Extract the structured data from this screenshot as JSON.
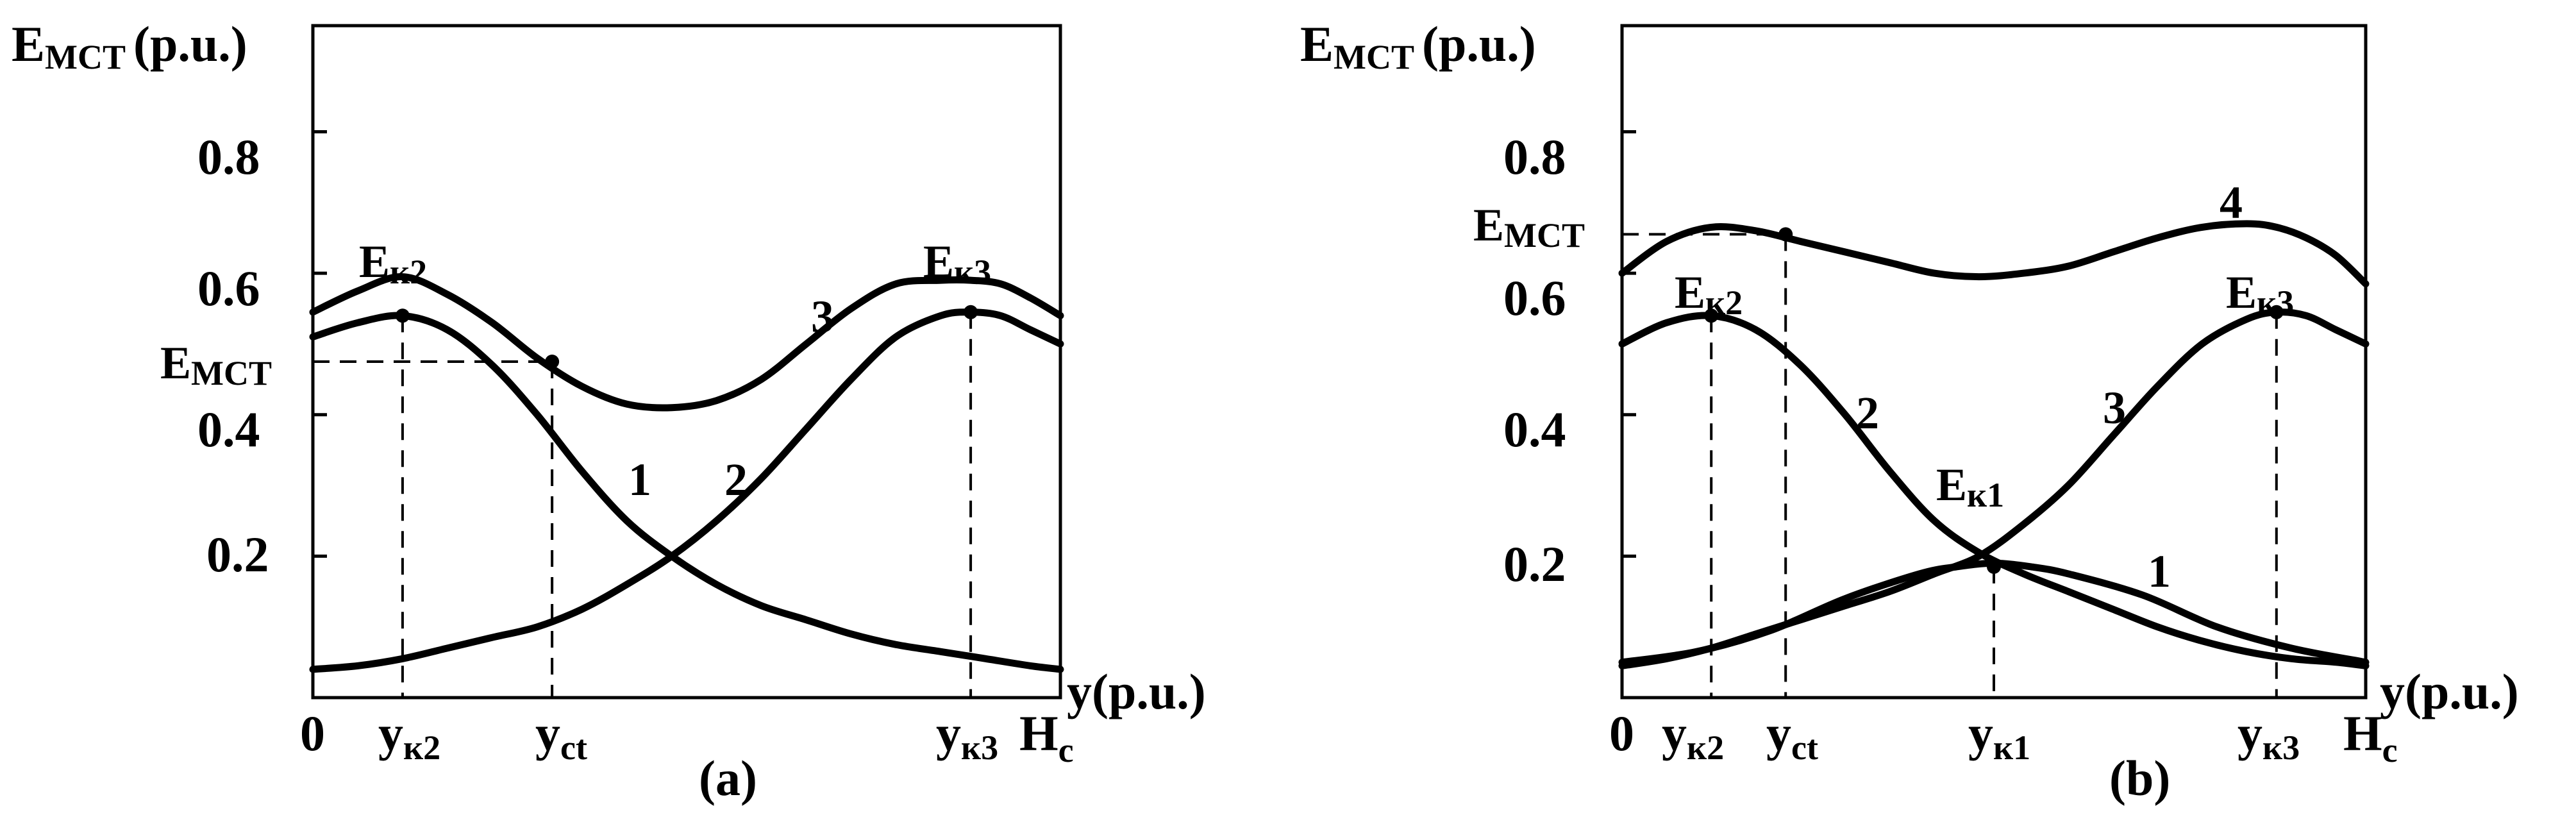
{
  "chart_data": [
    {
      "panel_label": "(a)",
      "type": "line",
      "ylabel": {
        "main": "E",
        "sub": "МСТ",
        "unit": "(p.u.)"
      },
      "xlabel": "y(p.u.)",
      "ylim": [
        0,
        0.95
      ],
      "xlim": [
        0,
        1
      ],
      "yticks": [
        "0.8",
        "0.6",
        "0.4",
        "0.2"
      ],
      "ytick_values": [
        0.8,
        0.6,
        0.4,
        0.2
      ],
      "x_origin_label": "0",
      "x_markers": [
        {
          "main": "у",
          "sub": "к2",
          "x": 0.12
        },
        {
          "main": "у",
          "sub": "ct",
          "x": 0.32
        },
        {
          "main": "у",
          "sub": "к3",
          "x": 0.88
        }
      ],
      "x_end_label": {
        "main": "H",
        "sub": "c"
      },
      "series": [
        {
          "name": "1",
          "x": [
            0,
            0.06,
            0.12,
            0.18,
            0.24,
            0.3,
            0.36,
            0.42,
            0.48,
            0.54,
            0.6,
            0.66,
            0.72,
            0.78,
            0.84,
            0.9,
            0.96,
            1.0
          ],
          "y": [
            0.51,
            0.53,
            0.54,
            0.52,
            0.47,
            0.4,
            0.32,
            0.25,
            0.2,
            0.16,
            0.13,
            0.11,
            0.09,
            0.075,
            0.065,
            0.055,
            0.045,
            0.04
          ]
        },
        {
          "name": "2",
          "x": [
            0,
            0.06,
            0.12,
            0.18,
            0.24,
            0.3,
            0.36,
            0.42,
            0.48,
            0.54,
            0.6,
            0.66,
            0.72,
            0.78,
            0.84,
            0.88,
            0.92,
            0.96,
            1.0
          ],
          "y": [
            0.04,
            0.045,
            0.055,
            0.07,
            0.085,
            0.1,
            0.125,
            0.16,
            0.2,
            0.25,
            0.31,
            0.38,
            0.45,
            0.51,
            0.54,
            0.545,
            0.54,
            0.52,
            0.5
          ]
        },
        {
          "name": "3",
          "x": [
            0,
            0.06,
            0.12,
            0.18,
            0.24,
            0.3,
            0.36,
            0.42,
            0.48,
            0.54,
            0.6,
            0.66,
            0.72,
            0.78,
            0.84,
            0.88,
            0.92,
            0.96,
            1.0
          ],
          "y": [
            0.545,
            0.575,
            0.595,
            0.57,
            0.53,
            0.48,
            0.44,
            0.415,
            0.41,
            0.42,
            0.45,
            0.5,
            0.55,
            0.585,
            0.59,
            0.59,
            0.585,
            0.565,
            0.54
          ]
        }
      ],
      "points": [
        {
          "label": {
            "main": "E",
            "sub": "к2"
          },
          "x": 0.12,
          "y": 0.54
        },
        {
          "label": {
            "main": "E",
            "sub": "к3"
          },
          "x": 0.88,
          "y": 0.545
        },
        {
          "label": null,
          "x": 0.32,
          "y": 0.475
        }
      ],
      "threshold": {
        "main": "E",
        "sub": "МСТ",
        "y": 0.475
      }
    },
    {
      "panel_label": "(b)",
      "type": "line",
      "ylabel": {
        "main": "E",
        "sub": "МСТ",
        "unit": "(p.u.)"
      },
      "xlabel": "y(p.u.)",
      "ylim": [
        0,
        0.95
      ],
      "xlim": [
        0,
        1
      ],
      "yticks": [
        "0.8",
        "0.6",
        "0.4",
        "0.2"
      ],
      "ytick_values": [
        0.8,
        0.6,
        0.4,
        0.2
      ],
      "x_origin_label": "0",
      "x_markers": [
        {
          "main": "у",
          "sub": "к2",
          "x": 0.12
        },
        {
          "main": "у",
          "sub": "ct",
          "x": 0.22
        },
        {
          "main": "у",
          "sub": "к1",
          "x": 0.5
        },
        {
          "main": "у",
          "sub": "к3",
          "x": 0.88
        }
      ],
      "x_end_label": {
        "main": "H",
        "sub": "c"
      },
      "series": [
        {
          "name": "1",
          "x": [
            0,
            0.1,
            0.2,
            0.3,
            0.4,
            0.45,
            0.5,
            0.55,
            0.6,
            0.7,
            0.8,
            0.9,
            1.0
          ],
          "y": [
            0.05,
            0.065,
            0.095,
            0.14,
            0.175,
            0.185,
            0.19,
            0.185,
            0.175,
            0.145,
            0.1,
            0.07,
            0.05
          ]
        },
        {
          "name": "2",
          "x": [
            0,
            0.06,
            0.12,
            0.18,
            0.24,
            0.3,
            0.36,
            0.42,
            0.48,
            0.54,
            0.6,
            0.66,
            0.72,
            0.78,
            0.84,
            0.9,
            0.96,
            1.0
          ],
          "y": [
            0.5,
            0.53,
            0.54,
            0.52,
            0.47,
            0.4,
            0.32,
            0.25,
            0.205,
            0.175,
            0.15,
            0.125,
            0.1,
            0.08,
            0.065,
            0.055,
            0.05,
            0.045
          ]
        },
        {
          "name": "3",
          "x": [
            0,
            0.06,
            0.12,
            0.18,
            0.24,
            0.3,
            0.36,
            0.42,
            0.48,
            0.54,
            0.6,
            0.66,
            0.72,
            0.78,
            0.84,
            0.88,
            0.92,
            0.96,
            1.0
          ],
          "y": [
            0.045,
            0.055,
            0.07,
            0.09,
            0.11,
            0.13,
            0.15,
            0.175,
            0.2,
            0.245,
            0.3,
            0.37,
            0.44,
            0.5,
            0.535,
            0.545,
            0.54,
            0.52,
            0.5
          ]
        },
        {
          "name": "4",
          "x": [
            0,
            0.06,
            0.12,
            0.18,
            0.24,
            0.3,
            0.36,
            0.42,
            0.48,
            0.54,
            0.6,
            0.66,
            0.72,
            0.78,
            0.84,
            0.88,
            0.92,
            0.96,
            1.0
          ],
          "y": [
            0.6,
            0.645,
            0.665,
            0.66,
            0.645,
            0.63,
            0.615,
            0.6,
            0.595,
            0.6,
            0.61,
            0.63,
            0.65,
            0.665,
            0.67,
            0.665,
            0.65,
            0.625,
            0.585
          ]
        }
      ],
      "points": [
        {
          "label": {
            "main": "E",
            "sub": "к2"
          },
          "x": 0.12,
          "y": 0.54
        },
        {
          "label": {
            "main": "E",
            "sub": "к3"
          },
          "x": 0.88,
          "y": 0.545
        },
        {
          "label": {
            "main": "E",
            "sub": "к1"
          },
          "x": 0.5,
          "y": 0.185
        },
        {
          "label": null,
          "x": 0.22,
          "y": 0.655
        }
      ],
      "threshold": {
        "main": "E",
        "sub": "МСТ",
        "y": 0.655
      }
    }
  ]
}
